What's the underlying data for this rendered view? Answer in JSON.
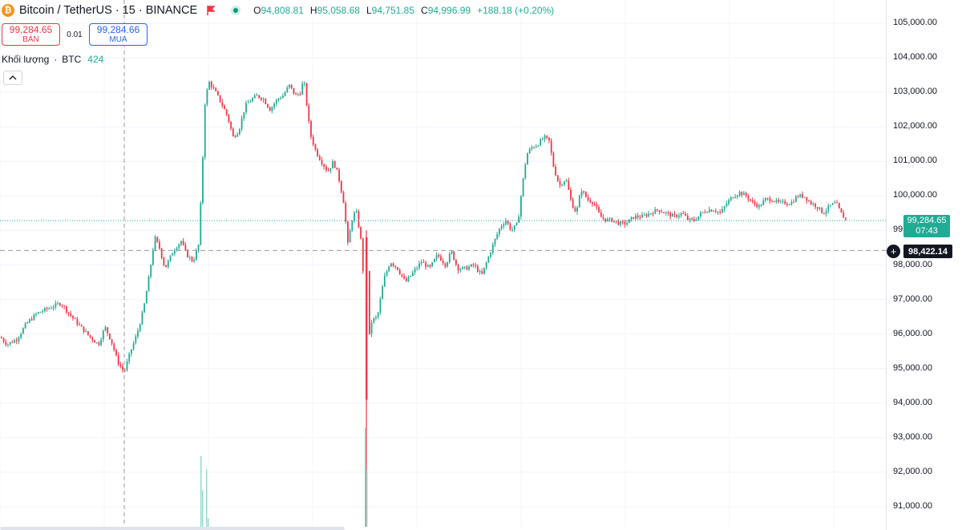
{
  "header": {
    "logo_icon": "bitcoin-logo-icon",
    "symbol_title": "Bitcoin / TetherUS · 15 · BINANCE",
    "flag_icon": "red-flag-icon",
    "status_icon": "market-open-dot-icon",
    "ohlc": {
      "open_label": "O",
      "open": "94,808.81",
      "high_label": "H",
      "high": "95,058.68",
      "low_label": "L",
      "low": "94,751.85",
      "close_label": "C",
      "close": "94,996.99",
      "change": "+188.18 (+0.20%)"
    }
  },
  "trade": {
    "sell_price": "99,284.65",
    "sell_label": "BÁN",
    "spread": "0.01",
    "buy_price": "99,284.66",
    "buy_label": "MUA"
  },
  "volume_legend": {
    "label": "Khối lượng",
    "separator": "·",
    "unit": "BTC",
    "value": "424"
  },
  "collapse_icon": "chevron-up-icon",
  "price_axis": {
    "current_price": "99,284.65",
    "countdown": "07:43",
    "crosshair_price": "98,422.14",
    "add_icon": "plus-circle-icon"
  },
  "colors": {
    "up": "#22ab94",
    "down": "#f23645",
    "grid": "#f0f3fa",
    "text": "#131722"
  },
  "chart_data": {
    "type": "candlestick",
    "symbol": "Bitcoin / TetherUS",
    "interval": "15",
    "exchange": "BINANCE",
    "ylim": [
      90700,
      105300
    ],
    "y_ticks": [
      "105,000.00",
      "104,000.00",
      "103,000.00",
      "102,000.00",
      "101,000.00",
      "100,000.00",
      "99,000.00",
      "98,000.00",
      "97,000.00",
      "96,000.00",
      "95,000.00",
      "94,000.00",
      "93,000.00",
      "92,000.00",
      "91,000.00"
    ],
    "y_tick_values": [
      105000,
      104000,
      103000,
      102000,
      101000,
      100000,
      99000,
      98000,
      97000,
      96000,
      95000,
      94000,
      93000,
      92000,
      91000
    ],
    "price_path": [
      [
        0,
        95900
      ],
      [
        8,
        95700
      ],
      [
        20,
        95850
      ],
      [
        32,
        96300
      ],
      [
        45,
        96600
      ],
      [
        60,
        96750
      ],
      [
        75,
        96900
      ],
      [
        85,
        96600
      ],
      [
        100,
        96200
      ],
      [
        112,
        95900
      ],
      [
        122,
        95700
      ],
      [
        130,
        96200
      ],
      [
        138,
        95800
      ],
      [
        146,
        95200
      ],
      [
        154,
        94900
      ],
      [
        162,
        95500
      ],
      [
        170,
        96000
      ],
      [
        178,
        96700
      ],
      [
        186,
        97800
      ],
      [
        192,
        98800
      ],
      [
        198,
        98500
      ],
      [
        205,
        97900
      ],
      [
        215,
        98400
      ],
      [
        225,
        98700
      ],
      [
        232,
        98300
      ],
      [
        240,
        98100
      ],
      [
        247,
        98600
      ],
      [
        251,
        100500
      ],
      [
        255,
        102800
      ],
      [
        260,
        103300
      ],
      [
        268,
        103000
      ],
      [
        275,
        102700
      ],
      [
        283,
        102300
      ],
      [
        290,
        101700
      ],
      [
        297,
        101900
      ],
      [
        305,
        102600
      ],
      [
        313,
        102800
      ],
      [
        320,
        102900
      ],
      [
        328,
        102800
      ],
      [
        336,
        102500
      ],
      [
        345,
        102800
      ],
      [
        352,
        102900
      ],
      [
        360,
        103200
      ],
      [
        368,
        102900
      ],
      [
        374,
        103000
      ],
      [
        378,
        103400
      ],
      [
        381,
        102800
      ],
      [
        386,
        101800
      ],
      [
        393,
        101300
      ],
      [
        400,
        101000
      ],
      [
        408,
        100700
      ],
      [
        415,
        101000
      ],
      [
        421,
        100600
      ],
      [
        428,
        99800
      ],
      [
        433,
        98600
      ],
      [
        438,
        99300
      ],
      [
        443,
        99600
      ],
      [
        449,
        98800
      ],
      [
        453,
        97500
      ],
      [
        456,
        94500
      ],
      [
        459,
        95800
      ],
      [
        463,
        96400
      ],
      [
        470,
        96500
      ],
      [
        478,
        97600
      ],
      [
        486,
        98100
      ],
      [
        495,
        97900
      ],
      [
        505,
        97500
      ],
      [
        515,
        97800
      ],
      [
        525,
        98100
      ],
      [
        535,
        97900
      ],
      [
        545,
        98300
      ],
      [
        555,
        98000
      ],
      [
        562,
        98400
      ],
      [
        570,
        97900
      ],
      [
        580,
        97900
      ],
      [
        590,
        98000
      ],
      [
        600,
        97700
      ],
      [
        608,
        98200
      ],
      [
        616,
        98700
      ],
      [
        623,
        99100
      ],
      [
        630,
        99300
      ],
      [
        637,
        99000
      ],
      [
        645,
        99200
      ],
      [
        650,
        100200
      ],
      [
        656,
        101200
      ],
      [
        662,
        101400
      ],
      [
        670,
        101500
      ],
      [
        678,
        101700
      ],
      [
        684,
        101600
      ],
      [
        690,
        100800
      ],
      [
        697,
        100300
      ],
      [
        705,
        100500
      ],
      [
        712,
        99800
      ],
      [
        718,
        99500
      ],
      [
        724,
        100200
      ],
      [
        732,
        99900
      ],
      [
        740,
        99800
      ],
      [
        748,
        99400
      ],
      [
        756,
        99300
      ],
      [
        764,
        99300
      ],
      [
        772,
        99200
      ],
      [
        780,
        99200
      ],
      [
        790,
        99400
      ],
      [
        800,
        99400
      ],
      [
        810,
        99500
      ],
      [
        820,
        99600
      ],
      [
        830,
        99500
      ],
      [
        840,
        99400
      ],
      [
        850,
        99500
      ],
      [
        858,
        99300
      ],
      [
        866,
        99300
      ],
      [
        874,
        99500
      ],
      [
        882,
        99600
      ],
      [
        890,
        99600
      ],
      [
        898,
        99500
      ],
      [
        906,
        99800
      ],
      [
        914,
        100000
      ],
      [
        922,
        100100
      ],
      [
        930,
        100000
      ],
      [
        938,
        99800
      ],
      [
        946,
        99700
      ],
      [
        954,
        99900
      ],
      [
        962,
        99900
      ],
      [
        970,
        99800
      ],
      [
        978,
        99800
      ],
      [
        986,
        99800
      ],
      [
        994,
        100000
      ],
      [
        1002,
        100000
      ],
      [
        1010,
        99800
      ],
      [
        1018,
        99700
      ],
      [
        1026,
        99500
      ],
      [
        1034,
        99700
      ],
      [
        1042,
        99800
      ],
      [
        1048,
        99500
      ],
      [
        1055,
        99285
      ]
    ],
    "spike_candle": {
      "x": 456,
      "open": 98800,
      "close": 94100,
      "high": 99000,
      "low": 90700
    },
    "volume_bars": [
      {
        "x": 250,
        "ratio": 0.68
      },
      {
        "x": 252,
        "ratio": 0.35
      },
      {
        "x": 257,
        "ratio": 0.55
      },
      {
        "x": 259,
        "ratio": 0.08
      },
      {
        "x": 455,
        "ratio": 0.95
      },
      {
        "x": 457,
        "ratio": 0.55
      }
    ],
    "current_price_value": 99284.65,
    "crosshair_price_value": 98422.14,
    "crosshair_x_fraction": 0.129
  }
}
